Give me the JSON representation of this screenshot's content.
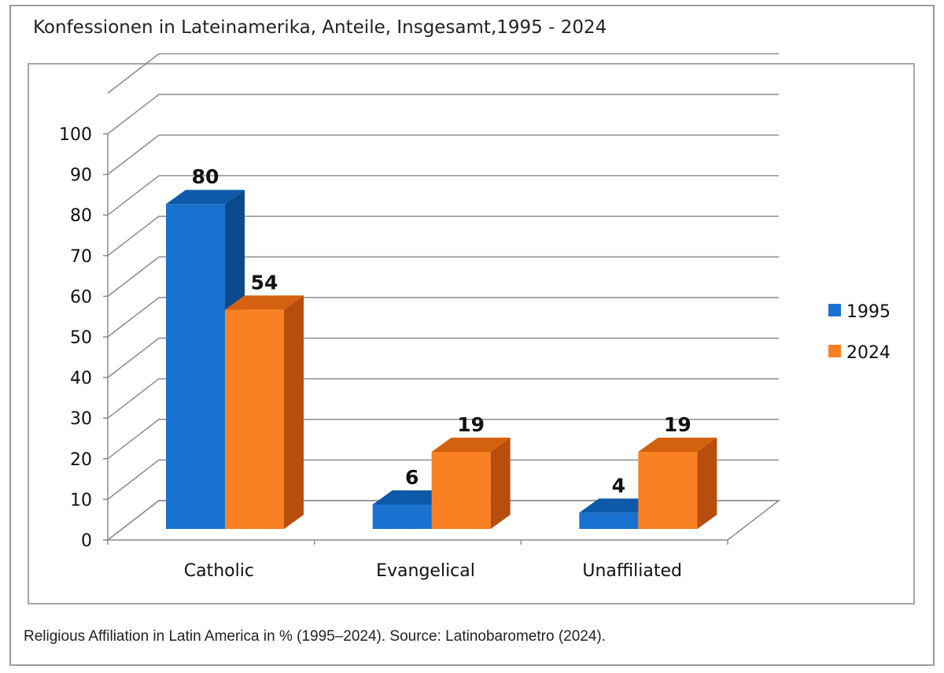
{
  "title": "Konfessionen in Lateinamerika, Anteile, Insgesamt,1995 - 2024",
  "caption": "Religious Affiliation in Latin America in % (1995–2024). Source: Latinobarometro (2024).",
  "chart_data": {
    "type": "bar",
    "title": "Konfessionen in Lateinamerika, Anteile, Insgesamt,1995 - 2024",
    "categories": [
      "Catholic",
      "Evangelical",
      "Unaffiliated"
    ],
    "series": [
      {
        "name": "1995",
        "values": [
          80,
          6,
          4
        ],
        "color": "#1a72d0"
      },
      {
        "name": "2024",
        "values": [
          54,
          19,
          19
        ],
        "color": "#f98123"
      }
    ],
    "ylim": [
      0,
      100
    ],
    "yticks": [
      0,
      10,
      20,
      30,
      40,
      50,
      60,
      70,
      80,
      90,
      100
    ],
    "data_labels": true,
    "grid": true,
    "legend_position": "right",
    "style": "3d"
  }
}
